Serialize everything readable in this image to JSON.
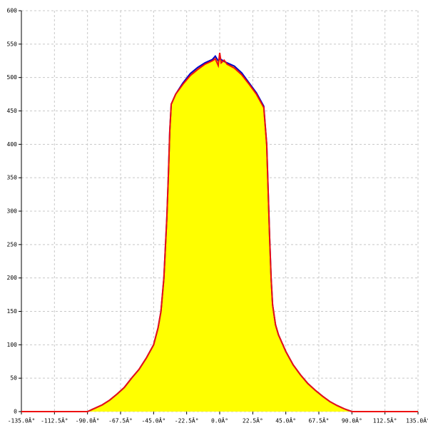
{
  "chart_data": {
    "type": "area",
    "x": [
      -135,
      -90,
      -85,
      -80,
      -75,
      -70,
      -65,
      -60,
      -55,
      -50,
      -45,
      -42,
      -40,
      -38,
      -36,
      -35,
      -34,
      -33,
      -30,
      -25,
      -20,
      -15,
      -10,
      -5,
      -3,
      -1,
      0,
      1,
      3,
      5,
      10,
      15,
      20,
      25,
      30,
      32,
      33,
      34,
      35,
      36,
      38,
      40,
      45,
      50,
      55,
      60,
      65,
      70,
      75,
      80,
      85,
      90,
      135
    ],
    "series": [
      {
        "color": "#0000cc",
        "values": [
          0,
          0,
          5,
          10,
          17,
          26,
          36,
          50,
          63,
          80,
          100,
          125,
          150,
          200,
          290,
          350,
          420,
          460,
          475,
          492,
          506,
          515,
          522,
          527,
          532,
          525,
          528,
          527,
          524,
          522,
          517,
          507,
          492,
          477,
          457,
          400,
          330,
          260,
          200,
          160,
          130,
          115,
          90,
          70,
          55,
          42,
          32,
          23,
          15,
          9,
          4,
          0,
          0
        ]
      },
      {
        "color": "#ee1111",
        "values": [
          0,
          0,
          5,
          10,
          17,
          26,
          36,
          50,
          63,
          80,
          100,
          125,
          150,
          200,
          290,
          350,
          420,
          460,
          475,
          490,
          503,
          512,
          520,
          525,
          528,
          518,
          537,
          522,
          526,
          520,
          514,
          504,
          490,
          475,
          455,
          400,
          330,
          260,
          200,
          160,
          130,
          115,
          90,
          70,
          55,
          42,
          32,
          23,
          15,
          9,
          4,
          0,
          0
        ]
      }
    ],
    "area_color": "#ffff00",
    "xlim": [
      -135,
      135
    ],
    "xticks": [
      {
        "value": -135,
        "label": "-135.0Â°"
      },
      {
        "value": -112.5,
        "label": "-112.5Â°"
      },
      {
        "value": -90,
        "label": "-90.0Â°"
      },
      {
        "value": -67.5,
        "label": "-67.5Â°"
      },
      {
        "value": -45,
        "label": "-45.0Â°"
      },
      {
        "value": -22.5,
        "label": "-22.5Â°"
      },
      {
        "value": 0,
        "label": "0.0Â°"
      },
      {
        "value": 22.5,
        "label": "22.5Â°"
      },
      {
        "value": 45,
        "label": "45.0Â°"
      },
      {
        "value": 67.5,
        "label": "67.5Â°"
      },
      {
        "value": 90,
        "label": "90.0Â°"
      },
      {
        "value": 112.5,
        "label": "112.5Â°"
      },
      {
        "value": 135,
        "label": "135.0Â°"
      }
    ],
    "ylim": [
      0,
      600
    ],
    "yticks": [
      0,
      50,
      100,
      150,
      200,
      250,
      300,
      350,
      400,
      450,
      500,
      550,
      600
    ],
    "grid": true
  }
}
